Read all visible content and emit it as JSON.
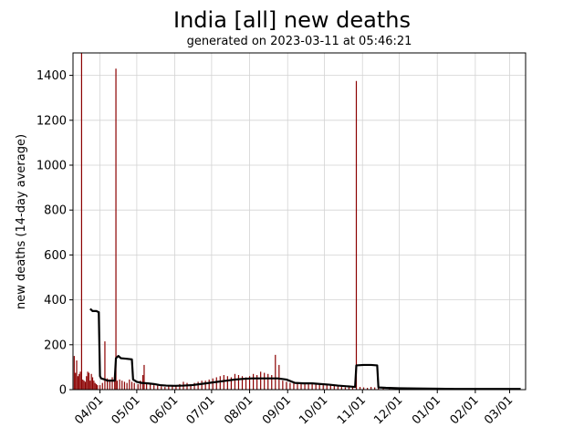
{
  "chart_data": {
    "type": "bar",
    "title": "India [all] new deaths",
    "subtitle": "generated on 2023-03-11 at 05:46:21",
    "xlabel": "",
    "ylabel": "new deaths (14-day average)",
    "ylim": [
      0,
      1500
    ],
    "xlim": [
      "2022-03-10",
      "2023-03-14"
    ],
    "grid": true,
    "legend": "none",
    "colors": {
      "bars": "#8b0000",
      "average_line": "#000000",
      "grid": "#d3d3d3"
    },
    "x_ticks": [
      {
        "date": "2022-04-01",
        "label": "04/01"
      },
      {
        "date": "2022-05-01",
        "label": "05/01"
      },
      {
        "date": "2022-06-01",
        "label": "06/01"
      },
      {
        "date": "2022-07-01",
        "label": "07/01"
      },
      {
        "date": "2022-08-01",
        "label": "08/01"
      },
      {
        "date": "2022-09-01",
        "label": "09/01"
      },
      {
        "date": "2022-10-01",
        "label": "10/01"
      },
      {
        "date": "2022-11-01",
        "label": "11/01"
      },
      {
        "date": "2022-12-01",
        "label": "12/01"
      },
      {
        "date": "2023-01-01",
        "label": "01/01"
      },
      {
        "date": "2023-02-01",
        "label": "02/01"
      },
      {
        "date": "2023-03-01",
        "label": "03/01"
      }
    ],
    "y_ticks": [
      0,
      200,
      400,
      600,
      800,
      1000,
      1200,
      1400
    ],
    "series": [
      {
        "kind": "bar",
        "points": [
          [
            "2022-03-11",
            150
          ],
          [
            "2022-03-12",
            75
          ],
          [
            "2022-03-13",
            130
          ],
          [
            "2022-03-14",
            60
          ],
          [
            "2022-03-15",
            70
          ],
          [
            "2022-03-16",
            80
          ],
          [
            "2022-03-17",
            1500
          ],
          [
            "2022-03-18",
            45
          ],
          [
            "2022-03-19",
            40
          ],
          [
            "2022-03-20",
            35
          ],
          [
            "2022-03-21",
            60
          ],
          [
            "2022-03-22",
            80
          ],
          [
            "2022-03-23",
            75
          ],
          [
            "2022-03-24",
            40
          ],
          [
            "2022-03-25",
            70
          ],
          [
            "2022-03-26",
            55
          ],
          [
            "2022-03-27",
            40
          ],
          [
            "2022-03-28",
            30
          ],
          [
            "2022-03-29",
            25
          ],
          [
            "2022-03-30",
            20
          ],
          [
            "2022-04-01",
            20
          ],
          [
            "2022-04-03",
            30
          ],
          [
            "2022-04-05",
            215
          ],
          [
            "2022-04-07",
            50
          ],
          [
            "2022-04-09",
            45
          ],
          [
            "2022-04-11",
            55
          ],
          [
            "2022-04-13",
            60
          ],
          [
            "2022-04-14",
            1430
          ],
          [
            "2022-04-15",
            40
          ],
          [
            "2022-04-17",
            45
          ],
          [
            "2022-04-19",
            40
          ],
          [
            "2022-04-21",
            35
          ],
          [
            "2022-04-23",
            30
          ],
          [
            "2022-04-25",
            45
          ],
          [
            "2022-04-27",
            35
          ],
          [
            "2022-04-29",
            30
          ],
          [
            "2022-05-02",
            25
          ],
          [
            "2022-05-04",
            40
          ],
          [
            "2022-05-06",
            65
          ],
          [
            "2022-05-07",
            110
          ],
          [
            "2022-05-09",
            30
          ],
          [
            "2022-05-12",
            25
          ],
          [
            "2022-05-15",
            20
          ],
          [
            "2022-05-18",
            18
          ],
          [
            "2022-05-21",
            15
          ],
          [
            "2022-05-24",
            12
          ],
          [
            "2022-05-27",
            15
          ],
          [
            "2022-05-30",
            18
          ],
          [
            "2022-06-02",
            20
          ],
          [
            "2022-06-05",
            25
          ],
          [
            "2022-06-08",
            35
          ],
          [
            "2022-06-11",
            30
          ],
          [
            "2022-06-14",
            25
          ],
          [
            "2022-06-17",
            30
          ],
          [
            "2022-06-20",
            35
          ],
          [
            "2022-06-23",
            40
          ],
          [
            "2022-06-26",
            40
          ],
          [
            "2022-06-29",
            45
          ],
          [
            "2022-07-02",
            50
          ],
          [
            "2022-07-05",
            55
          ],
          [
            "2022-07-08",
            60
          ],
          [
            "2022-07-11",
            65
          ],
          [
            "2022-07-14",
            60
          ],
          [
            "2022-07-17",
            55
          ],
          [
            "2022-07-20",
            70
          ],
          [
            "2022-07-23",
            65
          ],
          [
            "2022-07-26",
            60
          ],
          [
            "2022-07-29",
            55
          ],
          [
            "2022-08-01",
            60
          ],
          [
            "2022-08-04",
            70
          ],
          [
            "2022-08-07",
            65
          ],
          [
            "2022-08-10",
            80
          ],
          [
            "2022-08-13",
            75
          ],
          [
            "2022-08-16",
            70
          ],
          [
            "2022-08-19",
            65
          ],
          [
            "2022-08-22",
            155
          ],
          [
            "2022-08-25",
            110
          ],
          [
            "2022-08-28",
            40
          ],
          [
            "2022-08-31",
            35
          ],
          [
            "2022-09-03",
            30
          ],
          [
            "2022-09-06",
            35
          ],
          [
            "2022-09-09",
            30
          ],
          [
            "2022-09-12",
            28
          ],
          [
            "2022-09-15",
            30
          ],
          [
            "2022-09-18",
            25
          ],
          [
            "2022-09-21",
            30
          ],
          [
            "2022-09-24",
            28
          ],
          [
            "2022-09-27",
            25
          ],
          [
            "2022-09-30",
            20
          ],
          [
            "2022-10-03",
            22
          ],
          [
            "2022-10-06",
            20
          ],
          [
            "2022-10-09",
            18
          ],
          [
            "2022-10-12",
            15
          ],
          [
            "2022-10-15",
            12
          ],
          [
            "2022-10-18",
            10
          ],
          [
            "2022-10-21",
            15
          ],
          [
            "2022-10-24",
            10
          ],
          [
            "2022-10-27",
            1375
          ],
          [
            "2022-10-30",
            12
          ],
          [
            "2022-11-02",
            10
          ],
          [
            "2022-11-05",
            8
          ],
          [
            "2022-11-08",
            12
          ],
          [
            "2022-11-11",
            10
          ],
          [
            "2022-11-14",
            8
          ],
          [
            "2022-11-18",
            5
          ],
          [
            "2022-11-23",
            4
          ],
          [
            "2022-11-28",
            3
          ],
          [
            "2022-12-05",
            3
          ],
          [
            "2022-12-12",
            2
          ],
          [
            "2022-12-19",
            2
          ],
          [
            "2022-12-26",
            3
          ],
          [
            "2023-01-02",
            2
          ],
          [
            "2023-01-09",
            2
          ],
          [
            "2023-01-16",
            1
          ],
          [
            "2023-01-23",
            1
          ],
          [
            "2023-01-30",
            1
          ],
          [
            "2023-02-06",
            1
          ],
          [
            "2023-02-13",
            1
          ],
          [
            "2023-02-20",
            1
          ],
          [
            "2023-02-27",
            1
          ],
          [
            "2023-03-06",
            1
          ]
        ]
      },
      {
        "kind": "line",
        "points": [
          [
            "2022-03-24",
            360
          ],
          [
            "2022-03-26",
            350
          ],
          [
            "2022-03-29",
            350
          ],
          [
            "2022-03-31",
            345
          ],
          [
            "2022-04-01",
            60
          ],
          [
            "2022-04-02",
            50
          ],
          [
            "2022-04-05",
            45
          ],
          [
            "2022-04-07",
            40
          ],
          [
            "2022-04-10",
            40
          ],
          [
            "2022-04-13",
            40
          ],
          [
            "2022-04-14",
            140
          ],
          [
            "2022-04-16",
            150
          ],
          [
            "2022-04-18",
            140
          ],
          [
            "2022-04-22",
            138
          ],
          [
            "2022-04-27",
            135
          ],
          [
            "2022-04-28",
            45
          ],
          [
            "2022-05-01",
            35
          ],
          [
            "2022-05-05",
            30
          ],
          [
            "2022-05-10",
            28
          ],
          [
            "2022-05-15",
            25
          ],
          [
            "2022-05-20",
            20
          ],
          [
            "2022-05-25",
            18
          ],
          [
            "2022-06-01",
            17
          ],
          [
            "2022-06-08",
            18
          ],
          [
            "2022-06-15",
            20
          ],
          [
            "2022-06-22",
            25
          ],
          [
            "2022-06-29",
            30
          ],
          [
            "2022-07-06",
            35
          ],
          [
            "2022-07-13",
            40
          ],
          [
            "2022-07-20",
            45
          ],
          [
            "2022-07-27",
            48
          ],
          [
            "2022-08-03",
            50
          ],
          [
            "2022-08-10",
            50
          ],
          [
            "2022-08-17",
            50
          ],
          [
            "2022-08-24",
            50
          ],
          [
            "2022-08-31",
            45
          ],
          [
            "2022-09-07",
            30
          ],
          [
            "2022-09-14",
            28
          ],
          [
            "2022-09-21",
            28
          ],
          [
            "2022-09-28",
            25
          ],
          [
            "2022-10-05",
            22
          ],
          [
            "2022-10-12",
            18
          ],
          [
            "2022-10-19",
            15
          ],
          [
            "2022-10-26",
            12
          ],
          [
            "2022-10-27",
            108
          ],
          [
            "2022-11-02",
            110
          ],
          [
            "2022-11-08",
            110
          ],
          [
            "2022-11-13",
            108
          ],
          [
            "2022-11-14",
            10
          ],
          [
            "2022-11-20",
            8
          ],
          [
            "2022-12-01",
            6
          ],
          [
            "2022-12-15",
            5
          ],
          [
            "2023-01-01",
            4
          ],
          [
            "2023-01-15",
            3
          ],
          [
            "2023-02-01",
            3
          ],
          [
            "2023-02-15",
            3
          ],
          [
            "2023-03-01",
            3
          ],
          [
            "2023-03-10",
            3
          ]
        ]
      }
    ]
  }
}
